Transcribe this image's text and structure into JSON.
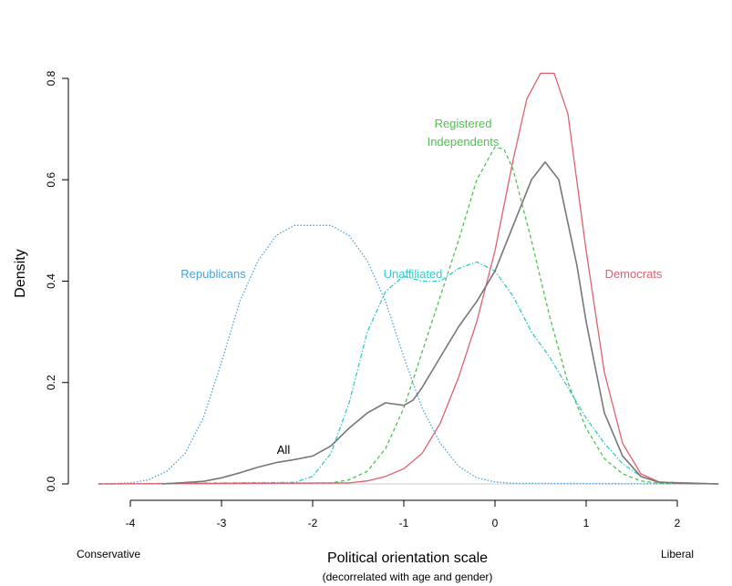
{
  "chart_data": {
    "type": "line",
    "title": "",
    "xlabel": "Political orientation scale",
    "xlabel_sub": "(decorrelated with age and gender)",
    "ylabel": "Density",
    "x_end_labels": {
      "left": "Conservative",
      "right": "Liberal"
    },
    "xlim": [
      -4.4,
      2.45
    ],
    "ylim": [
      0,
      0.91
    ],
    "x_ticks": [
      -4,
      -3,
      -2,
      -1,
      0,
      1,
      2
    ],
    "y_ticks": [
      0.0,
      0.2,
      0.4,
      0.6,
      0.8
    ],
    "x_tick_labels": [
      "-4",
      "-3",
      "-2",
      "-1",
      "0",
      "1",
      "2"
    ],
    "y_tick_labels": [
      "0.0",
      "0.2",
      "0.4",
      "0.6",
      "0.8"
    ],
    "grid": false,
    "legend": "none (series labeled inline)",
    "series": [
      {
        "name": "Republicans",
        "label_text": "Republicans",
        "color": "#4aa3df",
        "style": "dotted",
        "x": [
          -4.35,
          -4.0,
          -3.8,
          -3.6,
          -3.4,
          -3.2,
          -3.0,
          -2.8,
          -2.6,
          -2.4,
          -2.2,
          -2.0,
          -1.8,
          -1.6,
          -1.4,
          -1.2,
          -1.0,
          -0.8,
          -0.6,
          -0.4,
          -0.2,
          0.0,
          0.2,
          2.45
        ],
        "y": [
          0.0,
          0.002,
          0.008,
          0.025,
          0.06,
          0.13,
          0.24,
          0.36,
          0.44,
          0.49,
          0.51,
          0.51,
          0.51,
          0.49,
          0.44,
          0.36,
          0.25,
          0.15,
          0.08,
          0.035,
          0.012,
          0.004,
          0.001,
          0.0
        ]
      },
      {
        "name": "Unaffiliated",
        "label_text": "Unaffiliated",
        "color": "#33cccc",
        "style": "dashdot",
        "x": [
          -4.35,
          -2.2,
          -2.0,
          -1.8,
          -1.6,
          -1.4,
          -1.2,
          -1.0,
          -0.8,
          -0.6,
          -0.4,
          -0.2,
          0.0,
          0.2,
          0.4,
          0.6,
          0.8,
          1.0,
          1.2,
          1.4,
          1.6,
          1.8,
          2.45
        ],
        "y": [
          0.0,
          0.003,
          0.015,
          0.06,
          0.16,
          0.3,
          0.38,
          0.41,
          0.4,
          0.4,
          0.425,
          0.438,
          0.42,
          0.37,
          0.3,
          0.25,
          0.19,
          0.13,
          0.08,
          0.04,
          0.015,
          0.004,
          0.0
        ]
      },
      {
        "name": "Registered Independents",
        "label_text": [
          "Registered",
          "Independents"
        ],
        "color": "#4ec24e",
        "style": "dashed",
        "x": [
          -4.35,
          -1.8,
          -1.6,
          -1.4,
          -1.2,
          -1.0,
          -0.8,
          -0.6,
          -0.4,
          -0.2,
          0.0,
          0.1,
          0.2,
          0.4,
          0.6,
          0.8,
          1.0,
          1.2,
          1.4,
          1.6,
          1.8,
          2.45
        ],
        "y": [
          0.0,
          0.002,
          0.008,
          0.025,
          0.07,
          0.15,
          0.26,
          0.37,
          0.48,
          0.6,
          0.665,
          0.66,
          0.62,
          0.48,
          0.33,
          0.2,
          0.11,
          0.05,
          0.02,
          0.006,
          0.001,
          0.0
        ]
      },
      {
        "name": "Democrats",
        "label_text": "Democrats",
        "color": "#e0606e",
        "style": "solid",
        "x": [
          -4.35,
          -1.6,
          -1.4,
          -1.2,
          -1.0,
          -0.8,
          -0.6,
          -0.4,
          -0.2,
          0.0,
          0.2,
          0.35,
          0.5,
          0.65,
          0.8,
          1.0,
          1.2,
          1.4,
          1.6,
          1.8,
          2.0,
          2.45
        ],
        "y": [
          0.0,
          0.002,
          0.006,
          0.015,
          0.03,
          0.06,
          0.12,
          0.21,
          0.32,
          0.46,
          0.64,
          0.76,
          0.81,
          0.81,
          0.73,
          0.46,
          0.22,
          0.08,
          0.02,
          0.004,
          0.001,
          0.0
        ]
      },
      {
        "name": "All",
        "label_text": "All",
        "color": "#777777",
        "style": "solid",
        "x": [
          -3.65,
          -3.2,
          -3.0,
          -2.8,
          -2.6,
          -2.4,
          -2.2,
          -2.0,
          -1.8,
          -1.6,
          -1.4,
          -1.2,
          -1.0,
          -0.9,
          -0.8,
          -0.6,
          -0.4,
          -0.2,
          0.0,
          0.2,
          0.4,
          0.55,
          0.7,
          0.9,
          1.0,
          1.2,
          1.4,
          1.6,
          1.8,
          2.45
        ],
        "y": [
          0.0,
          0.005,
          0.012,
          0.022,
          0.033,
          0.042,
          0.048,
          0.055,
          0.075,
          0.11,
          0.14,
          0.16,
          0.155,
          0.165,
          0.19,
          0.25,
          0.31,
          0.36,
          0.42,
          0.51,
          0.6,
          0.635,
          0.6,
          0.43,
          0.32,
          0.14,
          0.055,
          0.015,
          0.003,
          0.0
        ]
      }
    ]
  }
}
